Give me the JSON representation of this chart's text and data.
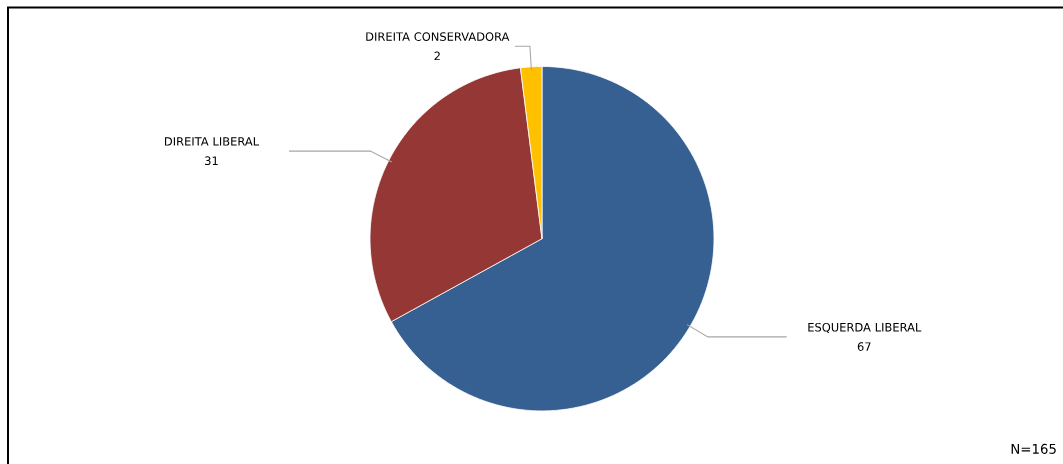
{
  "chart_data": {
    "type": "pie",
    "categories": [
      "ESQUERDA LIBERAL",
      "DIREITA LIBERAL",
      "DIREITA CONSERVADORA"
    ],
    "values": [
      67,
      31,
      2
    ],
    "colors": [
      "#366092",
      "#953735",
      "#ffc000"
    ],
    "data_labels": true,
    "annotations": [
      "N=165"
    ]
  }
}
